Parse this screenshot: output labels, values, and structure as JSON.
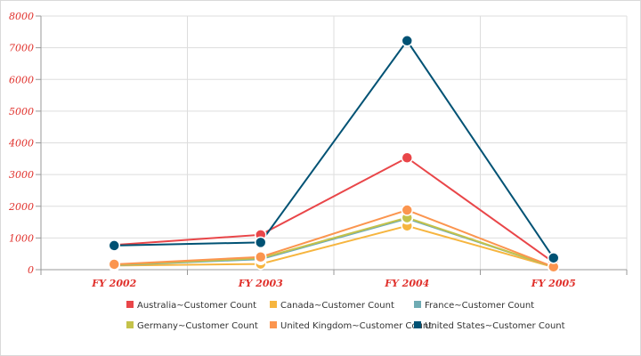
{
  "chart_data": {
    "type": "line",
    "categories": [
      "FY 2002",
      "FY 2003",
      "FY 2004",
      "FY 2005"
    ],
    "ylim": [
      0,
      8000
    ],
    "yticks": [
      0,
      1000,
      2000,
      3000,
      4000,
      5000,
      6000,
      7000,
      8000
    ],
    "grid": true,
    "legend_position": "bottom",
    "series": [
      {
        "name": "Australia~Customer Count",
        "color": "#e94649",
        "values": [
          780,
          1100,
          3530,
          230
        ]
      },
      {
        "name": "Canada~Customer Count",
        "color": "#f6b53f",
        "values": [
          130,
          180,
          1380,
          80
        ]
      },
      {
        "name": "France~Customer Count",
        "color": "#6fabb3",
        "values": [
          140,
          330,
          1610,
          90
        ]
      },
      {
        "name": "Germany~Customer Count",
        "color": "#c4c24a",
        "values": [
          150,
          360,
          1640,
          90
        ]
      },
      {
        "name": "United Kingdom~Customer Count",
        "color": "#fb954f",
        "values": [
          170,
          400,
          1880,
          90
        ]
      },
      {
        "name": "United States~Customer Count",
        "color": "#005274",
        "values": [
          760,
          860,
          7220,
          370
        ]
      }
    ]
  }
}
